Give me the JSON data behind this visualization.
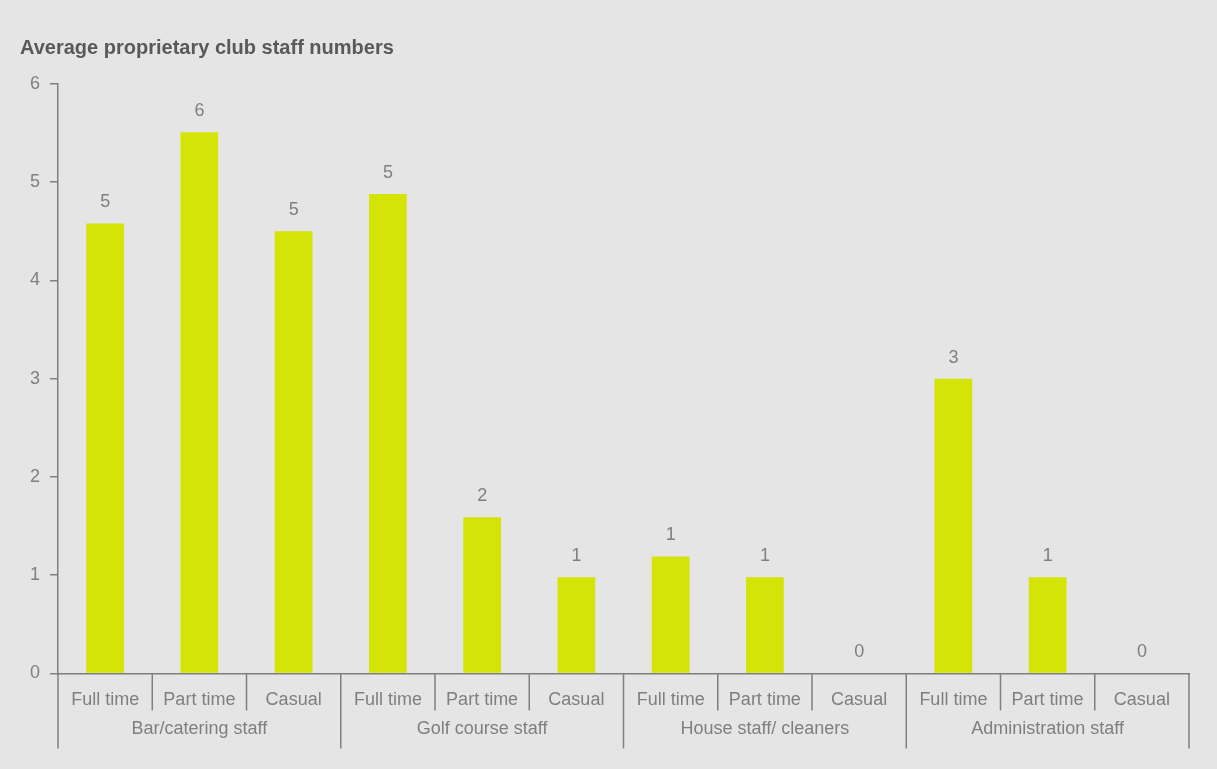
{
  "chart_data": {
    "type": "bar",
    "title": "Average proprietary club staff numbers",
    "categories": [
      "Full time",
      "Part time",
      "Casual",
      "Full time",
      "Part time",
      "Casual",
      "Full time",
      "Part time",
      "Casual",
      "Full time",
      "Part time",
      "Casual"
    ],
    "values": [
      4.58,
      5.51,
      4.5,
      4.88,
      1.59,
      0.98,
      1.19,
      0.98,
      0,
      3.0,
      0.98,
      0
    ],
    "value_labels": [
      "5",
      "6",
      "5",
      "5",
      "2",
      "1",
      "1",
      "1",
      "0",
      "3",
      "1",
      "0"
    ],
    "color": "#d4e406",
    "ylim": [
      0,
      6
    ],
    "yticks": [
      0,
      1,
      2,
      3,
      4,
      5,
      6
    ],
    "annotations": [
      "Bar/catering staff",
      "Golf course staff",
      "House staff/ cleaners",
      "Administration staff"
    ]
  }
}
